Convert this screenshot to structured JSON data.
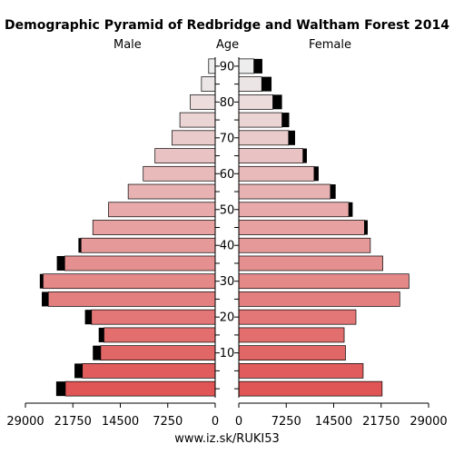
{
  "chart_data": {
    "type": "bar",
    "title": "Demographic Pyramid of Redbridge and Waltham Forest 2014",
    "left_label": "Male",
    "center_label": "Age",
    "right_label": "Female",
    "source": "www.iz.sk/RUKI53",
    "age_ticks": [
      "10",
      "20",
      "30",
      "40",
      "50",
      "60",
      "70",
      "80",
      "90"
    ],
    "x_ticks_left": [
      "29000",
      "21750",
      "14500",
      "7250",
      "0"
    ],
    "x_ticks_right": [
      "0",
      "7250",
      "14500",
      "21750",
      "29000"
    ],
    "xlim": [
      0,
      29000
    ],
    "age_groups": [
      "0-4",
      "5-9",
      "10-14",
      "15-19",
      "20-24",
      "25-29",
      "30-34",
      "35-39",
      "40-44",
      "45-49",
      "50-54",
      "55-59",
      "60-64",
      "65-69",
      "70-74",
      "75-79",
      "80-84",
      "85-89",
      "90+"
    ],
    "series": [
      {
        "name": "Male",
        "values": [
          22900,
          20300,
          17500,
          17000,
          18900,
          25500,
          26300,
          23000,
          20500,
          18700,
          16300,
          13300,
          11000,
          9200,
          6600,
          5400,
          3800,
          2100,
          1000
        ]
      },
      {
        "name": "Male (black segment)",
        "values": [
          1400,
          1200,
          1200,
          800,
          1000,
          1000,
          500,
          1200,
          400,
          0,
          0,
          0,
          0,
          0,
          0,
          0,
          0,
          0,
          0
        ]
      },
      {
        "name": "Female",
        "values": [
          21900,
          19000,
          16300,
          16100,
          17900,
          24600,
          26000,
          22000,
          20100,
          19200,
          16800,
          14000,
          11500,
          9800,
          7600,
          6600,
          5200,
          3500,
          2300
        ]
      },
      {
        "name": "Female (black segment)",
        "values": [
          0,
          0,
          0,
          0,
          0,
          0,
          0,
          0,
          0,
          500,
          600,
          800,
          700,
          600,
          1000,
          1100,
          1400,
          1500,
          1300
        ]
      }
    ]
  }
}
